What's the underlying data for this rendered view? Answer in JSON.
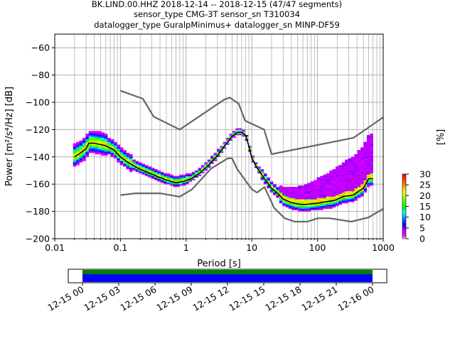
{
  "chart_data": [
    {
      "type": "heatmap",
      "title_lines": [
        "BK.LIND.00.HHZ   2018-12-14 -- 2018-12-15  (47/47 segments)",
        "sensor_type CMG-3T sensor_sn T310034",
        "datalogger_type GuralpMinimus+ datalogger_sn MINP-DF59"
      ],
      "xlabel": "Period [s]",
      "ylabel_text": "Power [m²/s⁴/Hz] [dB]",
      "xscale": "log",
      "xlim": [
        0.01,
        1000
      ],
      "ylim": [
        -200,
        -50
      ],
      "x_ticks": [
        0.01,
        0.1,
        1,
        10,
        100,
        1000
      ],
      "x_tick_labels": [
        "0.01",
        "0.1",
        "1",
        "10",
        "100",
        "1000"
      ],
      "y_ticks": [
        -200,
        -180,
        -160,
        -140,
        -120,
        -100,
        -80,
        -60
      ],
      "y_tick_labels": [
        "−200",
        "−180",
        "−160",
        "−140",
        "−120",
        "−100",
        "−80",
        "−60"
      ],
      "grid": true,
      "colorbar": {
        "label": "[%]",
        "ticks": [
          0,
          5,
          10,
          15,
          20,
          25,
          30
        ],
        "tick_labels": [
          "0",
          "5",
          "10",
          "15",
          "20",
          "25",
          "30"
        ],
        "range": [
          0,
          30
        ],
        "colormap": "pqlx"
      },
      "series": [
        {
          "role": "new-high-noise-model",
          "color": "#666666",
          "x": [
            0.1,
            0.22,
            0.32,
            0.8,
            3.8,
            4.6,
            6.3,
            7.9,
            15.4,
            20,
            354.8,
            1000
          ],
          "y": [
            -91.5,
            -97.4,
            -110.5,
            -120,
            -98,
            -96.5,
            -101,
            -113.5,
            -120,
            -138,
            -126,
            -111
          ]
        },
        {
          "role": "new-low-noise-model",
          "color": "#666666",
          "x": [
            0.1,
            0.17,
            0.4,
            0.8,
            1.24,
            2.4,
            4.3,
            5,
            6,
            10,
            12,
            15.6,
            21.9,
            31.6,
            45,
            70,
            101,
            154,
            328,
            600,
            1000
          ],
          "y": [
            -168,
            -166.7,
            -166.7,
            -169.2,
            -163.7,
            -148.6,
            -141.1,
            -141.1,
            -149,
            -163.8,
            -166.2,
            -162.1,
            -177.5,
            -185,
            -187.5,
            -187.5,
            -185,
            -185,
            -187.5,
            -184.4,
            -178
          ]
        },
        {
          "role": "mode",
          "color": "#000000",
          "x": [
            0.02,
            0.025,
            0.03,
            0.033,
            0.04,
            0.05,
            0.06,
            0.08,
            0.1,
            0.13,
            0.18,
            0.25,
            0.35,
            0.5,
            0.7,
            0.9,
            1.2,
            1.6,
            2.2,
            3,
            4,
            5,
            6,
            7,
            8,
            9,
            10,
            12,
            15,
            20,
            25,
            30,
            40,
            50,
            60,
            80,
            100,
            130,
            180,
            250,
            350,
            400,
            500,
            600,
            700
          ],
          "y": [
            -140,
            -137,
            -134,
            -130,
            -130,
            -131,
            -132,
            -135,
            -140,
            -144,
            -148,
            -151,
            -154,
            -157,
            -159,
            -158,
            -156,
            -152,
            -146,
            -139,
            -131,
            -125,
            -122,
            -122,
            -124,
            -132,
            -141,
            -148,
            -155,
            -163,
            -167,
            -171,
            -173.5,
            -174.5,
            -175,
            -174.5,
            -174,
            -173,
            -172,
            -169,
            -168,
            -166,
            -163,
            -156,
            -156
          ]
        }
      ]
    },
    {
      "type": "timeline",
      "ticks": [
        "12-15 00",
        "12-15 03",
        "12-15 06",
        "12-15 09",
        "12-15 12",
        "12-15 15",
        "12-15 18",
        "12-15 21",
        "12-16 00"
      ],
      "coverage_colors": [
        "#008000",
        "#0000ff"
      ]
    }
  ]
}
